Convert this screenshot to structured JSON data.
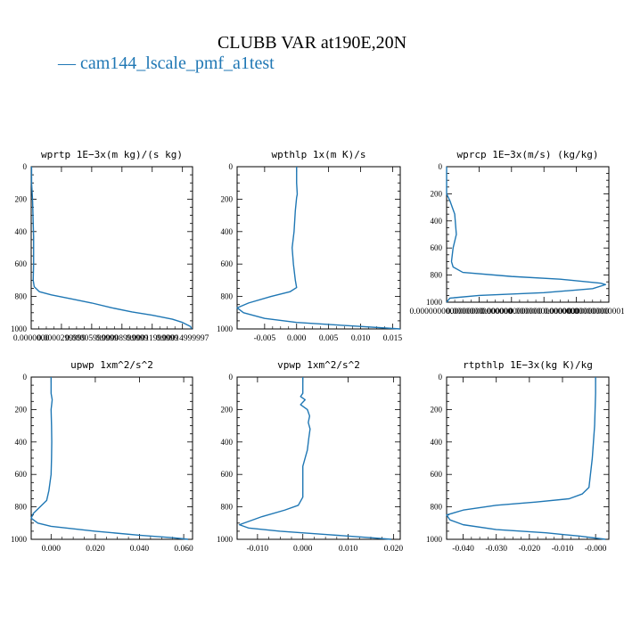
{
  "title": "CLUBB VAR at190E,20N",
  "legend": {
    "label": "— cam144_lscale_pmf_a1test",
    "color": "#1f77b4"
  },
  "chart_data": [
    {
      "type": "line",
      "title": "wprtp  1E−3x(m kg)/(s kg)",
      "xlim": [
        0.0,
        0.00016
      ],
      "xticks": [
        {
          "v": 0.0,
          "label": "0.0000000"
        },
        {
          "v": 3e-05,
          "label": "0.0000299999"
        },
        {
          "v": 6e-05,
          "label": "0.00005999999"
        },
        {
          "v": 9e-05,
          "label": "0.00008999999"
        },
        {
          "v": 0.00012,
          "label": "0.00011999999"
        },
        {
          "v": 0.00015,
          "label": "0.00014999997"
        }
      ],
      "ylim": [
        0,
        1000
      ],
      "yticks": [
        0,
        200,
        400,
        600,
        800,
        1000
      ],
      "series": [
        {
          "points": [
            [
              4e-07,
              0
            ],
            [
              4e-07,
              100
            ],
            [
              1.4e-06,
              210
            ],
            [
              2e-06,
              350
            ],
            [
              2.4e-06,
              430
            ],
            [
              2.4e-06,
              600
            ],
            [
              2e-06,
              700
            ],
            [
              3e-06,
              740
            ],
            [
              8e-06,
              770
            ],
            [
              2e-05,
              790
            ],
            [
              4e-05,
              815
            ],
            [
              6e-05,
              840
            ],
            [
              8e-05,
              870
            ],
            [
              0.0001,
              895
            ],
            [
              0.00012,
              915
            ],
            [
              0.00014,
              940
            ],
            [
              0.00015,
              960
            ],
            [
              0.000158,
              985
            ],
            [
              0.000159,
              1000
            ]
          ]
        }
      ]
    },
    {
      "type": "line",
      "title": "wpthlp  1x(m K)/s",
      "xlim": [
        -0.0093,
        0.0162
      ],
      "xticks": [
        {
          "v": -0.005,
          "label": "-0.005"
        },
        {
          "v": 0.0,
          "label": "0.000"
        },
        {
          "v": 0.005,
          "label": "0.005"
        },
        {
          "v": 0.01,
          "label": "0.010"
        },
        {
          "v": 0.015,
          "label": "0.015"
        }
      ],
      "ylim": [
        0,
        1000
      ],
      "yticks": [
        0,
        200,
        400,
        600,
        800,
        1000
      ],
      "series": [
        {
          "points": [
            [
              0.0,
              0
            ],
            [
              0.0,
              100
            ],
            [
              0.0001,
              170
            ],
            [
              0.0,
              190
            ],
            [
              -0.0002,
              270
            ],
            [
              -0.0004,
              400
            ],
            [
              -0.0007,
              500
            ],
            [
              -0.0005,
              600
            ],
            [
              -0.0002,
              700
            ],
            [
              0.0,
              745
            ],
            [
              -0.001,
              770
            ],
            [
              -0.004,
              800
            ],
            [
              -0.0075,
              840
            ],
            [
              -0.0093,
              870
            ],
            [
              -0.0083,
              900
            ],
            [
              -0.005,
              935
            ],
            [
              0.0,
              960
            ],
            [
              0.008,
              980
            ],
            [
              0.0162,
              1000
            ]
          ]
        }
      ]
    },
    {
      "type": "line",
      "title": "wprcp  1E−3x(m/s) (kg/kg)",
      "xlim": [
        0.0,
        1e-06
      ],
      "xticks": [
        {
          "v": 0.0,
          "label": "0.0000000000000000"
        },
        {
          "v": 2e-07,
          "label": "0.00000000000000"
        },
        {
          "v": 4e-07,
          "label": "0.0000000000000"
        },
        {
          "v": 6e-07,
          "label": "0.000000000000000"
        },
        {
          "v": 8e-07,
          "label": "0.00000000000000"
        },
        {
          "v": 1e-06,
          "label": "0.000000000001000000"
        }
      ],
      "ylim": [
        0,
        1000
      ],
      "yticks": [
        0,
        200,
        400,
        600,
        800,
        1000
      ],
      "series": [
        {
          "points": [
            [
              0.0,
              0
            ],
            [
              0.0,
              100
            ],
            [
              0.0,
              200
            ],
            [
              2e-08,
              250
            ],
            [
              5e-08,
              350
            ],
            [
              6e-08,
              500
            ],
            [
              4e-08,
              600
            ],
            [
              3e-08,
              700
            ],
            [
              4e-08,
              740
            ],
            [
              1e-07,
              780
            ],
            [
              4e-07,
              810
            ],
            [
              7e-07,
              830
            ],
            [
              9.5e-07,
              860
            ],
            [
              9.8e-07,
              870
            ],
            [
              9e-07,
              900
            ],
            [
              6e-07,
              930
            ],
            [
              2e-07,
              950
            ],
            [
              2e-08,
              970
            ],
            [
              0.0,
              1000
            ]
          ]
        }
      ]
    },
    {
      "type": "line",
      "title": "upwp  1xm^2/s^2",
      "xlim": [
        -0.009,
        0.064
      ],
      "xticks": [
        {
          "v": 0.0,
          "label": "0.000"
        },
        {
          "v": 0.02,
          "label": "0.020"
        },
        {
          "v": 0.04,
          "label": "0.040"
        },
        {
          "v": 0.06,
          "label": "0.060"
        }
      ],
      "ylim": [
        0,
        1000
      ],
      "yticks": [
        0,
        200,
        400,
        600,
        800,
        1000
      ],
      "series": [
        {
          "points": [
            [
              0.0,
              0
            ],
            [
              0.0,
              100
            ],
            [
              0.0005,
              140
            ],
            [
              0.0,
              200
            ],
            [
              0.0002,
              300
            ],
            [
              0.0003,
              400
            ],
            [
              0.0002,
              500
            ],
            [
              0.0,
              600
            ],
            [
              -0.001,
              700
            ],
            [
              -0.002,
              760
            ],
            [
              -0.005,
              800
            ],
            [
              -0.008,
              840
            ],
            [
              -0.009,
              870
            ],
            [
              -0.006,
              900
            ],
            [
              0.0,
              920
            ],
            [
              0.02,
              950
            ],
            [
              0.04,
              975
            ],
            [
              0.055,
              990
            ],
            [
              0.062,
              1000
            ]
          ]
        }
      ]
    },
    {
      "type": "line",
      "title": "vpwp  1xm^2/s^2",
      "xlim": [
        -0.0145,
        0.0215
      ],
      "xticks": [
        {
          "v": -0.01,
          "label": "-0.010"
        },
        {
          "v": 0.0,
          "label": "0.000"
        },
        {
          "v": 0.01,
          "label": "0.010"
        },
        {
          "v": 0.02,
          "label": "0.020"
        }
      ],
      "ylim": [
        0,
        1000
      ],
      "yticks": [
        0,
        200,
        400,
        600,
        800,
        1000
      ],
      "series": [
        {
          "points": [
            [
              0.0,
              0
            ],
            [
              0.0,
              100
            ],
            [
              -0.0005,
              120
            ],
            [
              0.0005,
              140
            ],
            [
              -0.0005,
              170
            ],
            [
              0.001,
              200
            ],
            [
              0.0015,
              240
            ],
            [
              0.0012,
              280
            ],
            [
              0.0016,
              320
            ],
            [
              0.0013,
              380
            ],
            [
              0.001,
              450
            ],
            [
              0.0,
              550
            ],
            [
              0.0,
              650
            ],
            [
              0.0,
              740
            ],
            [
              -0.001,
              790
            ],
            [
              -0.004,
              820
            ],
            [
              -0.009,
              860
            ],
            [
              -0.012,
              890
            ],
            [
              -0.014,
              910
            ],
            [
              -0.012,
              930
            ],
            [
              -0.005,
              950
            ],
            [
              0.005,
              970
            ],
            [
              0.015,
              990
            ],
            [
              0.0195,
              1000
            ]
          ]
        }
      ]
    },
    {
      "type": "line",
      "title": "rtpthlp  1E−3x(kg K)/kg",
      "xlim": [
        -0.045,
        0.004
      ],
      "xticks": [
        {
          "v": -0.04,
          "label": "-0.040"
        },
        {
          "v": -0.03,
          "label": "-0.030"
        },
        {
          "v": -0.02,
          "label": "-0.020"
        },
        {
          "v": -0.01,
          "label": "-0.010"
        },
        {
          "v": 0.0,
          "label": "-0.000"
        }
      ],
      "ylim": [
        0,
        1000
      ],
      "yticks": [
        0,
        200,
        400,
        600,
        800,
        1000
      ],
      "series": [
        {
          "points": [
            [
              0.0,
              0
            ],
            [
              0.0,
              100
            ],
            [
              -0.0003,
              300
            ],
            [
              -0.001,
              500
            ],
            [
              -0.002,
              680
            ],
            [
              -0.004,
              720
            ],
            [
              -0.008,
              750
            ],
            [
              -0.018,
              770
            ],
            [
              -0.03,
              790
            ],
            [
              -0.04,
              820
            ],
            [
              -0.045,
              850
            ],
            [
              -0.044,
              880
            ],
            [
              -0.04,
              910
            ],
            [
              -0.03,
              940
            ],
            [
              -0.015,
              960
            ],
            [
              -0.005,
              980
            ],
            [
              0.003,
              1000
            ]
          ]
        }
      ]
    }
  ]
}
